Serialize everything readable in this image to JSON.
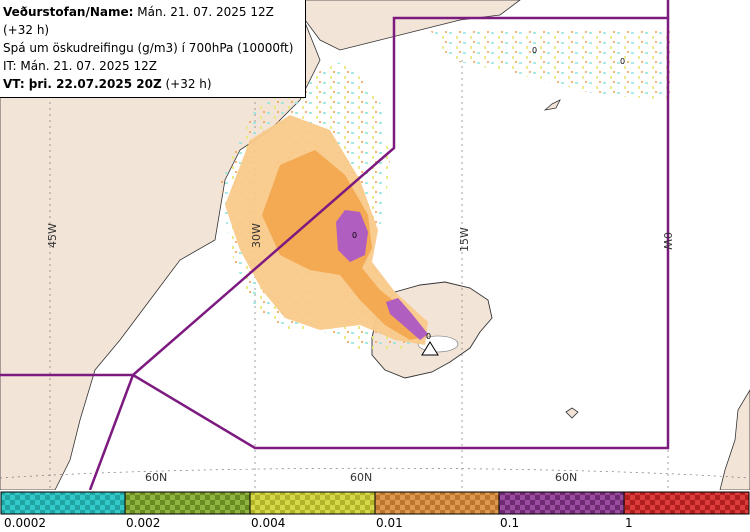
{
  "info": {
    "line1_label": "Veðurstofan/Name:",
    "line1_value": " Mán. 21. 07. 2025 12Z (+32 h)",
    "line2": "Spá um öskudreifingu (g/m3) í 700hPa (10000ft)",
    "line3": "IT: Mán. 21. 07. 2025 12Z",
    "line4_label": "VT: þri. 22.07.2025 20Z",
    "line4_value": " (+32 h)"
  },
  "map_labels": {
    "lon_45w": "45W",
    "lon_30w": "30W",
    "lon_15w": "15W",
    "lon_0w": "0W",
    "lat_1": "60N",
    "lat_2": "60N",
    "lat_3": "60N",
    "contour_labels": [
      "0",
      "0",
      "0",
      "0"
    ]
  },
  "legend": {
    "thresholds": [
      "0.0002",
      "0.002",
      "0.004",
      "0.01",
      "0.1",
      "1"
    ],
    "colors": [
      "#33c9c9",
      "#7fa533",
      "#c6c83a",
      "#d18a3a",
      "#8a3a8e",
      "#cc2b2b"
    ]
  },
  "colors": {
    "land": "#f3e4d8",
    "sea": "#ffffff",
    "fir_boundary": "#7d1a80",
    "ash_light": "#f9c98a",
    "ash_medium": "#f3a84f",
    "ash_high": "#b05ec0"
  },
  "volcano_icon": "volcano-triangle-icon"
}
